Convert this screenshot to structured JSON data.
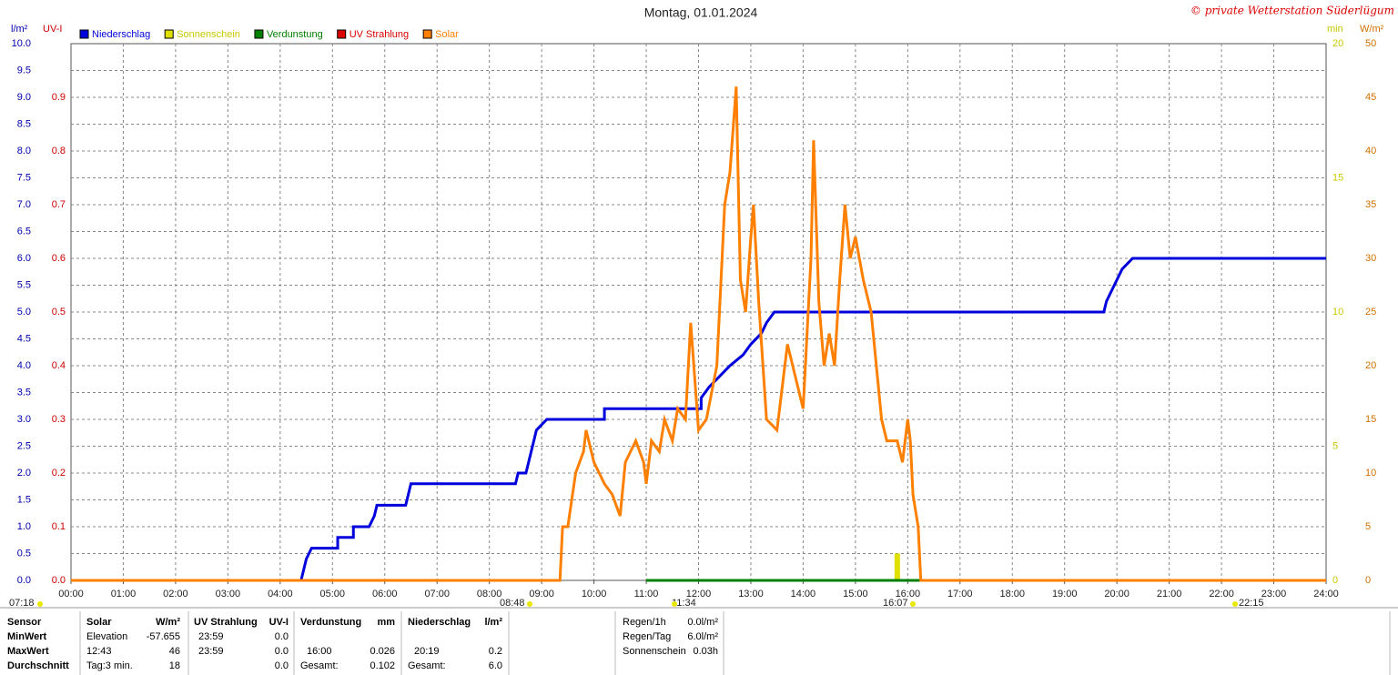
{
  "chart_data": {
    "type": "line",
    "title": "Montag, 01.01.2024",
    "copyright": "© private Wetterstation Süderlügum",
    "xlim": [
      0,
      24
    ],
    "xticks": [
      {
        "value": 0,
        "label": "00:00"
      },
      {
        "value": 1,
        "label": "01:00"
      },
      {
        "value": 2,
        "label": "02:00"
      },
      {
        "value": 3,
        "label": "03:00"
      },
      {
        "value": 4,
        "label": "04:00"
      },
      {
        "value": 5,
        "label": "05:00"
      },
      {
        "value": 6,
        "label": "06:00"
      },
      {
        "value": 7,
        "label": "07:00"
      },
      {
        "value": 8,
        "label": "08:00"
      },
      {
        "value": 9,
        "label": "09:00"
      },
      {
        "value": 10,
        "label": "10:00"
      },
      {
        "value": 11,
        "label": "11:00"
      },
      {
        "value": 12,
        "label": "12:00"
      },
      {
        "value": 13,
        "label": "13:00"
      },
      {
        "value": 14,
        "label": "14:00"
      },
      {
        "value": 15,
        "label": "15:00"
      },
      {
        "value": 16,
        "label": "16:00"
      },
      {
        "value": 17,
        "label": "17:00"
      },
      {
        "value": 18,
        "label": "18:00"
      },
      {
        "value": 19,
        "label": "19:00"
      },
      {
        "value": 20,
        "label": "20:00"
      },
      {
        "value": 21,
        "label": "21:00"
      },
      {
        "value": 22,
        "label": "22:00"
      },
      {
        "value": 23,
        "label": "23:00"
      },
      {
        "value": 24,
        "label": "24:00"
      }
    ],
    "grid": true,
    "axes": [
      {
        "label": "l/m²",
        "color": "#0000b0",
        "lim": [
          0,
          10
        ],
        "ticks": [
          {
            "value": 0,
            "label": "0.0"
          },
          0.5,
          {
            "value": 1,
            "label": "1.0"
          },
          1.5,
          {
            "value": 2,
            "label": "2.0"
          },
          2.5,
          {
            "value": 3,
            "label": "3.0"
          },
          3.5,
          {
            "value": 4,
            "label": "4.0"
          },
          4.5,
          {
            "value": 5,
            "label": "5.0"
          },
          5.5,
          {
            "value": 6,
            "label": "6.0"
          },
          6.5,
          {
            "value": 7,
            "label": "7.0"
          },
          7.5,
          {
            "value": 8,
            "label": "8.0"
          },
          8.5,
          {
            "value": 9,
            "label": "9.0"
          },
          9.5,
          {
            "value": 10,
            "label": "10.0"
          }
        ]
      },
      {
        "label": "UV-I",
        "color": "#cc0000",
        "lim": [
          0,
          1
        ],
        "ticks": [
          {
            "value": 0,
            "label": "0.0"
          },
          0.1,
          0.2,
          0.3,
          0.4,
          0.5,
          0.6,
          0.7,
          0.8,
          0.9
        ]
      },
      {
        "label": "min",
        "color": "#c8c800",
        "lim": [
          0,
          20
        ],
        "ticks": [
          0,
          5,
          10,
          15,
          20
        ]
      },
      {
        "label": "W/m²",
        "color": "#d07000",
        "lim": [
          0,
          50
        ],
        "ticks": [
          0,
          5,
          10,
          15,
          20,
          25,
          30,
          35,
          40,
          45,
          50
        ]
      }
    ],
    "series": [
      {
        "name": "Niederschlag",
        "color": "#0000dd",
        "axis": 0,
        "kind": "line",
        "x": [
          0,
          4.4,
          4.45,
          4.5,
          4.6,
          5.1,
          5.1,
          5.4,
          5.4,
          5.7,
          5.8,
          5.85,
          6.4,
          6.45,
          6.5,
          8.5,
          8.55,
          8.7,
          8.75,
          8.8,
          8.85,
          8.9,
          9.1,
          10.2,
          10.2,
          12.05,
          12.05,
          12.2,
          12.4,
          12.6,
          12.85,
          13.0,
          13.2,
          13.3,
          13.45,
          19.75,
          19.8,
          19.9,
          20.0,
          20.1,
          20.3,
          24
        ],
        "values": [
          0,
          0,
          0.2,
          0.4,
          0.6,
          0.6,
          0.8,
          0.8,
          1.0,
          1.0,
          1.2,
          1.4,
          1.4,
          1.6,
          1.8,
          1.8,
          2.0,
          2.0,
          2.2,
          2.4,
          2.6,
          2.8,
          3.0,
          3.0,
          3.2,
          3.2,
          3.4,
          3.6,
          3.8,
          4.0,
          4.2,
          4.4,
          4.6,
          4.8,
          5.0,
          5.0,
          5.2,
          5.4,
          5.6,
          5.8,
          6.0,
          6.0
        ]
      },
      {
        "name": "Sonnenschein",
        "color": "#e0e000",
        "axis": 2,
        "kind": "bar",
        "x": [
          15.8
        ],
        "values": [
          1
        ]
      },
      {
        "name": "Verdunstung",
        "color": "#008000",
        "axis": 0,
        "kind": "line",
        "x": [
          11,
          24
        ],
        "values": [
          0,
          0
        ]
      },
      {
        "name": "UV Strahlung",
        "color": "#dd0000",
        "axis": 1,
        "kind": "line",
        "x": [],
        "values": []
      },
      {
        "name": "Solar",
        "color": "#ff8000",
        "axis": 3,
        "kind": "line",
        "x": [
          0,
          9.35,
          9.4,
          9.5,
          9.65,
          9.8,
          9.85,
          10.0,
          10.1,
          10.2,
          10.35,
          10.5,
          10.6,
          10.7,
          10.8,
          10.95,
          11.0,
          11.1,
          11.25,
          11.35,
          11.5,
          11.6,
          11.75,
          11.85,
          12.0,
          12.15,
          12.35,
          12.5,
          12.6,
          12.72,
          12.8,
          12.9,
          13.0,
          13.05,
          13.15,
          13.3,
          13.5,
          13.7,
          13.85,
          14.0,
          14.15,
          14.2,
          14.3,
          14.4,
          14.5,
          14.6,
          14.7,
          14.8,
          14.9,
          15.0,
          15.15,
          15.3,
          15.5,
          15.6,
          15.8,
          15.9,
          16.0,
          16.05,
          16.1,
          16.2,
          16.25,
          24
        ],
        "values": [
          0,
          0,
          5,
          5,
          10,
          12,
          14,
          11,
          10,
          9,
          8,
          6,
          11,
          12,
          13,
          11,
          9,
          13,
          12,
          15,
          13,
          16,
          15,
          24,
          14,
          15,
          20,
          35,
          38,
          46,
          28,
          25,
          32,
          35,
          26,
          15,
          14,
          22,
          19,
          16,
          30,
          41,
          26,
          20,
          23,
          20,
          28,
          35,
          30,
          32,
          28,
          25,
          15,
          13,
          13,
          11,
          15,
          13,
          8,
          5,
          0,
          0
        ]
      }
    ],
    "time_markers": [
      "07:18",
      "08:48",
      "11:34",
      "16:07",
      "22:15"
    ],
    "table": {
      "header": [
        "Sensor",
        "Solar",
        "W/m²",
        "UV Strahlung",
        "UV-I",
        "Verdunstung",
        "mm",
        "Niederschlag",
        "l/m²"
      ],
      "rows": [
        [
          "MinWert",
          "Elevation",
          "-57.655",
          "23:59",
          "0.0",
          null,
          null,
          null,
          null
        ],
        [
          "MaxWert",
          "12:43",
          "46",
          "23:59",
          "0.0",
          "16:00",
          "0.026",
          "20:19",
          "0.2"
        ],
        [
          "Durchschnitt",
          "Tag:3 min.",
          "18",
          null,
          "0.0",
          "Gesamt:",
          "0.102",
          "Gesamt:",
          "6.0"
        ]
      ]
    },
    "summary": [
      [
        "Regen/1h",
        "0.0l/m²"
      ],
      [
        "Regen/Tag",
        "6.0l/m²"
      ],
      [
        "Sonnenschein",
        "0.03h"
      ]
    ]
  }
}
